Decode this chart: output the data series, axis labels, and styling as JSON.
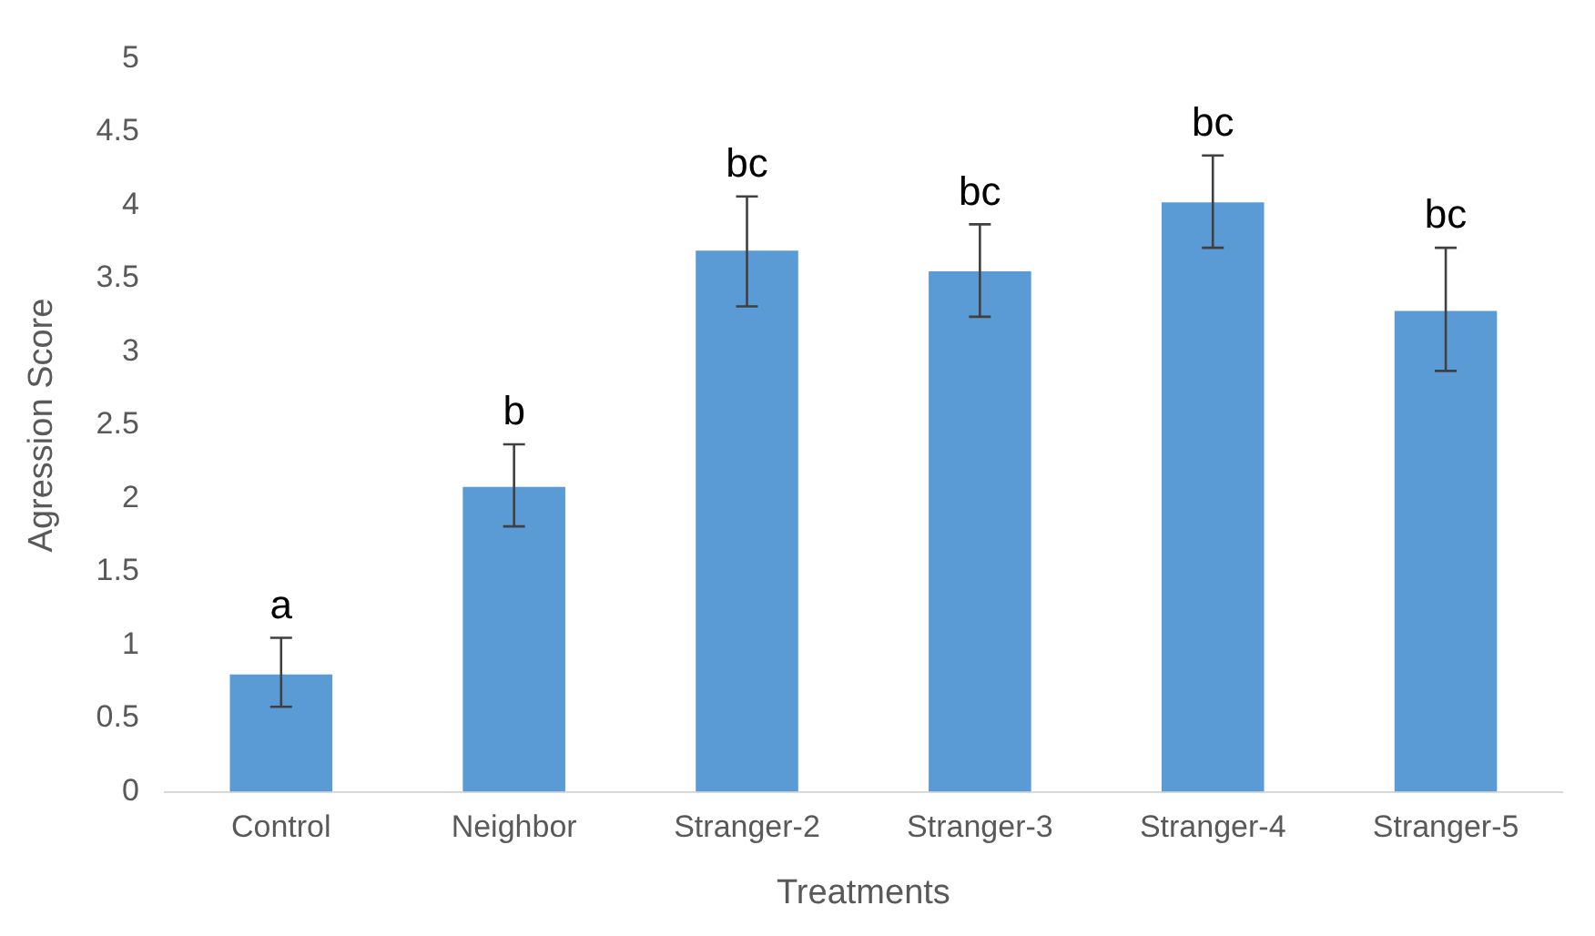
{
  "chart_data": {
    "type": "bar",
    "xlabel": "Treatments",
    "ylabel": "Agression Score",
    "categories": [
      "Control",
      "Neighbor",
      "Stranger-2",
      "Stranger-3",
      "Stranger-4",
      "Stranger-5"
    ],
    "values": [
      0.8,
      2.08,
      3.69,
      3.55,
      4.02,
      3.28
    ],
    "color": "#5b9bd5",
    "errors": [
      [
        0.58,
        1.05
      ],
      [
        1.81,
        2.37
      ],
      [
        3.31,
        4.06
      ],
      [
        3.24,
        3.87
      ],
      [
        3.71,
        4.34
      ],
      [
        2.87,
        3.71
      ]
    ],
    "ylim": [
      0,
      5
    ],
    "yticks": [
      0,
      0.5,
      1,
      1.5,
      2,
      2.5,
      3,
      3.5,
      4,
      4.5,
      5
    ],
    "grid": false,
    "legend": false,
    "annotations": [
      {
        "text": "a",
        "x": "Control",
        "y": 1.05
      },
      {
        "text": "b",
        "x": "Neighbor",
        "y": 2.37
      },
      {
        "text": "bc",
        "x": "Stranger-2",
        "y": 4.06
      },
      {
        "text": "bc",
        "x": "Stranger-3",
        "y": 3.87
      },
      {
        "text": "bc",
        "x": "Stranger-4",
        "y": 4.34
      },
      {
        "text": "bc",
        "x": "Stranger-5",
        "y": 3.71
      }
    ]
  }
}
